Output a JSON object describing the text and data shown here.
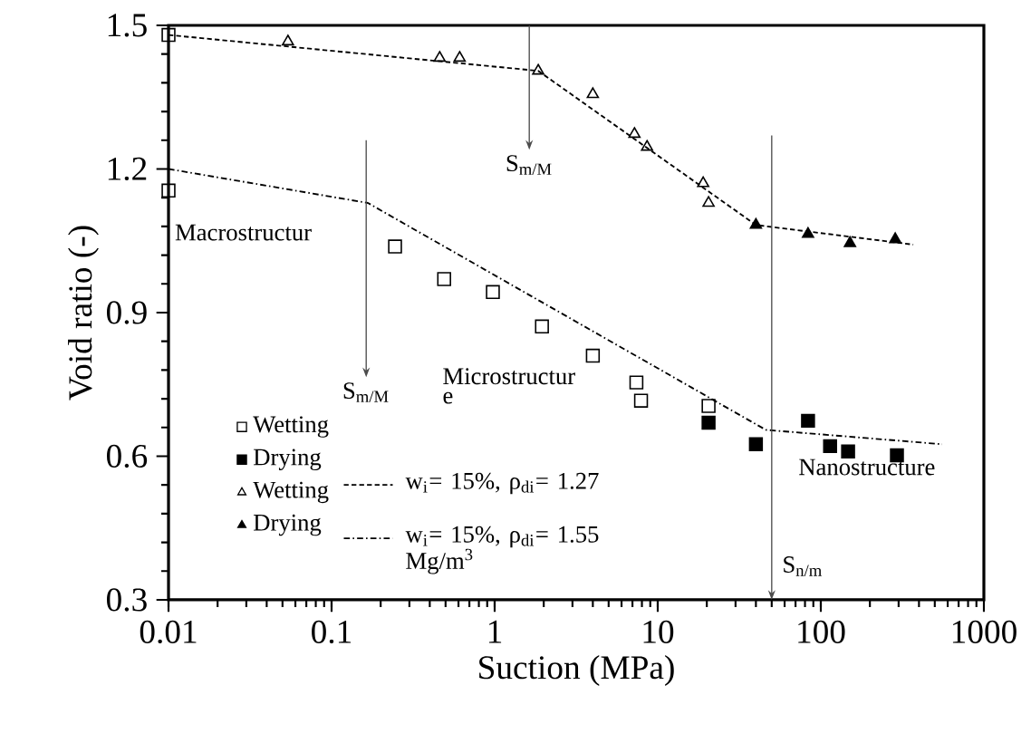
{
  "chart_data": {
    "type": "scatter",
    "xlabel": "Suction (MPa)",
    "ylabel": "Void ratio (-)",
    "log": "x",
    "xlim": [
      0.01,
      1000
    ],
    "xticks": [
      0.01,
      0.1,
      1,
      10,
      100,
      1000
    ],
    "ylim": [
      0.3,
      1.5
    ],
    "yticks": [
      0.3,
      0.6,
      0.9,
      1.2,
      1.5
    ],
    "grid": false,
    "legend": "bottom left",
    "series": [
      {
        "name": "Wetting",
        "marker": "square",
        "color": "#000000",
        "x": [
          0.01,
          0.01,
          0.245,
          0.49,
          0.975,
          1.95,
          4.0,
          7.4,
          7.9,
          20.5
        ],
        "values": [
          1.48,
          1.155,
          1.038,
          0.97,
          0.943,
          0.871,
          0.81,
          0.754,
          0.716,
          0.705
        ]
      },
      {
        "name": "Drying",
        "marker": "square",
        "color": "#000000",
        "x": [
          20.5,
          40,
          83.5,
          114,
          147,
          293
        ],
        "values": [
          0.67,
          0.625,
          0.674,
          0.621,
          0.61,
          0.602
        ]
      },
      {
        "name": "Wetting",
        "marker": "triangle",
        "color": "#000000",
        "x": [
          0.054,
          0.46,
          0.61,
          1.85,
          4.0,
          7.2,
          8.6,
          19,
          20.5
        ],
        "values": [
          1.466,
          1.432,
          1.432,
          1.405,
          1.356,
          1.273,
          1.246,
          1.17,
          1.129
        ]
      },
      {
        "name": "Drying",
        "marker": "triangle",
        "color": "#000000",
        "x": [
          40,
          83.5,
          151,
          286
        ],
        "values": [
          1.083,
          1.064,
          1.045,
          1.053
        ]
      },
      {
        "name": "w$_{i}$= 15%, ρ$_{di}$= 1.27",
        "type": "line",
        "line_style": "dashed",
        "color": "#000000",
        "x": [
          0.01,
          1.85,
          40,
          369
        ],
        "values": [
          1.48,
          1.405,
          1.083,
          1.042
        ]
      },
      {
        "name": "w$_{i}$= 15%, ρ$_{di}$= 1.55 Mg/m$^{3}$",
        "type": "line",
        "line_style": "dashdot",
        "color": "#000000",
        "x": [
          0.01,
          0.167,
          46,
          555
        ],
        "values": [
          1.2,
          1.129,
          0.655,
          0.625
        ]
      }
    ],
    "annotations": [
      "S$_{m/M}$",
      "S$_{m/M}$",
      "S$_{n/m}$",
      "Macrostructur",
      "Microstructur",
      "e",
      "Nanostructure"
    ]
  }
}
